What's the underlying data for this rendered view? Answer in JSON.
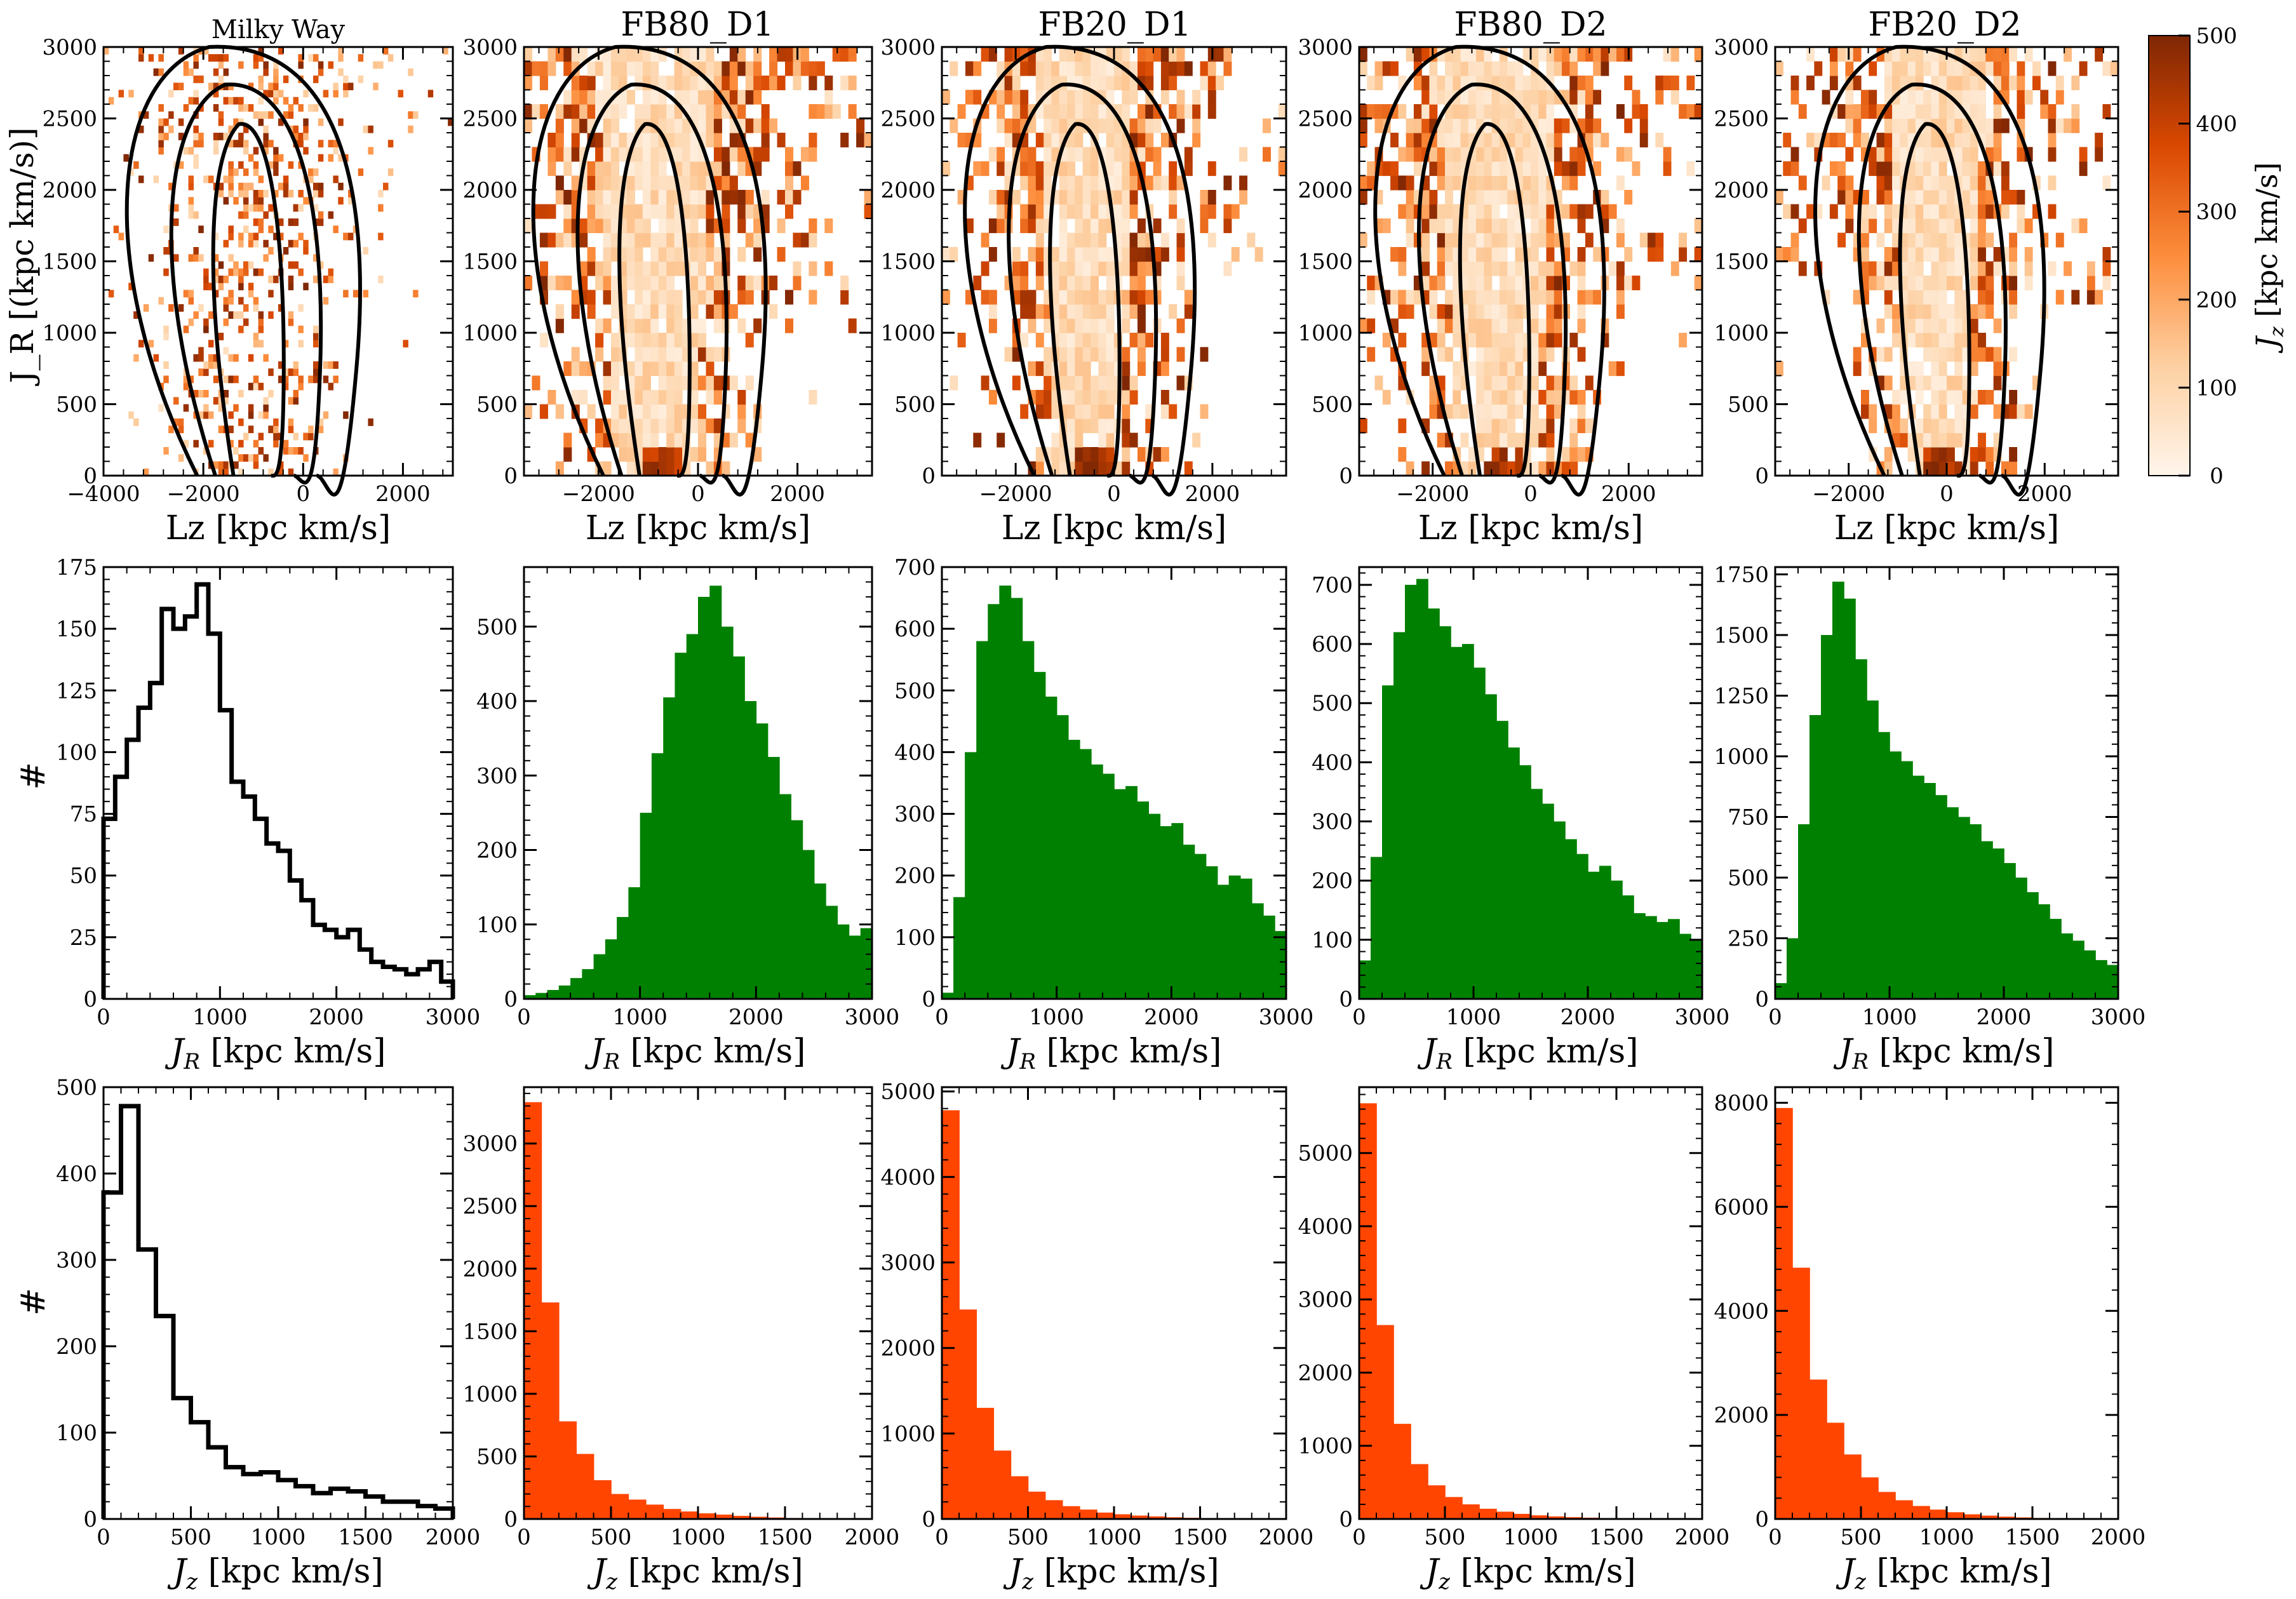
{
  "figure": {
    "column_titles": [
      "Milky Way",
      "FB80_D1",
      "FB20_D1",
      "FB80_D2",
      "FB20_D2"
    ],
    "colorbar": {
      "label": "J_z [kpc km/s]",
      "label_math": "J",
      "label_sub": "z",
      "label_rest": " [kpc km/s]",
      "min": 0,
      "max": 500,
      "ticks": [
        0,
        100,
        200,
        300,
        400,
        500
      ],
      "colors": [
        "#fff5eb",
        "#fdd0a2",
        "#fd8d3c",
        "#d94801",
        "#7f2704"
      ]
    },
    "row_labels": {
      "row1_ylabel": "J_R [(kpc km/s)]",
      "row2_ylabel": "#",
      "row3_ylabel": "#"
    },
    "colors": {
      "green_bar": "#008000",
      "orange_bar": "#ff4500",
      "contour": "#000000"
    }
  },
  "chart_data": [
    {
      "type": "heatmap",
      "panel": "Milky Way",
      "title": "Milky Way",
      "xlabel": "Lz [kpc km/s]",
      "ylabel": "J_R [(kpc km/s)]",
      "xlim": [
        -4000,
        3000
      ],
      "ylim": [
        0,
        3000
      ],
      "xticks": [
        -4000,
        -2000,
        0,
        2000
      ],
      "yticks": [
        0,
        500,
        1000,
        1500,
        2000,
        2500,
        3000
      ],
      "description": "sparse scattered 2D histogram with contours centred near Lz=0"
    },
    {
      "type": "heatmap",
      "panel": "FB80_D1",
      "title": "FB80_D1",
      "xlabel": "Lz [kpc km/s]",
      "xlim": [
        -3500,
        3500
      ],
      "ylim": [
        0,
        3000
      ],
      "xticks": [
        -2000,
        0,
        2000
      ],
      "yticks": [
        0,
        500,
        1000,
        1500,
        2000,
        2500,
        3000
      ]
    },
    {
      "type": "heatmap",
      "panel": "FB20_D1",
      "title": "FB20_D1",
      "xlabel": "Lz [kpc km/s]",
      "xlim": [
        -3500,
        3500
      ],
      "ylim": [
        0,
        3000
      ],
      "xticks": [
        -2000,
        0,
        2000
      ],
      "yticks": [
        0,
        500,
        1000,
        1500,
        2000,
        2500,
        3000
      ]
    },
    {
      "type": "heatmap",
      "panel": "FB80_D2",
      "title": "FB80_D2",
      "xlabel": "Lz [kpc km/s]",
      "xlim": [
        -3500,
        3500
      ],
      "ylim": [
        0,
        3000
      ],
      "xticks": [
        -2000,
        0,
        2000
      ],
      "yticks": [
        0,
        500,
        1000,
        1500,
        2000,
        2500,
        3000
      ]
    },
    {
      "type": "heatmap",
      "panel": "FB20_D2",
      "title": "FB20_D2",
      "xlabel": "Lz [kpc km/s]",
      "xlim": [
        -3500,
        3500
      ],
      "ylim": [
        0,
        3000
      ],
      "xticks": [
        -2000,
        0,
        2000
      ],
      "yticks": [
        0,
        500,
        1000,
        1500,
        2000,
        2500,
        3000
      ]
    },
    {
      "type": "bar",
      "style": "step",
      "panel": "Milky Way J_R",
      "xlabel": "J_R [kpc km/s]",
      "ylabel": "#",
      "xlim": [
        0,
        3000
      ],
      "ylim": [
        0,
        175
      ],
      "bin_width": 100,
      "values": [
        73,
        90,
        105,
        118,
        128,
        158,
        150,
        155,
        168,
        148,
        117,
        88,
        82,
        73,
        63,
        60,
        48,
        40,
        30,
        28,
        25,
        28,
        20,
        15,
        13,
        12,
        10,
        12,
        15,
        7
      ],
      "xticks": [
        0,
        1000,
        2000,
        3000
      ],
      "yticks": [
        0,
        25,
        50,
        75,
        100,
        125,
        150,
        175
      ]
    },
    {
      "type": "bar",
      "panel": "FB80_D1 J_R",
      "xlabel": "J_R [kpc km/s]",
      "xlim": [
        0,
        3000
      ],
      "ylim": [
        0,
        580
      ],
      "bin_width": 100,
      "values": [
        5,
        8,
        12,
        18,
        28,
        40,
        60,
        80,
        110,
        150,
        250,
        330,
        405,
        465,
        490,
        540,
        555,
        500,
        460,
        400,
        370,
        325,
        275,
        240,
        200,
        155,
        125,
        100,
        85,
        95
      ],
      "xticks": [
        0,
        1000,
        2000,
        3000
      ],
      "yticks": [
        0,
        100,
        200,
        300,
        400,
        500
      ]
    },
    {
      "type": "bar",
      "panel": "FB20_D1 J_R",
      "xlabel": "J_R [kpc km/s]",
      "xlim": [
        0,
        3000
      ],
      "ylim": [
        0,
        700
      ],
      "bin_width": 100,
      "values": [
        10,
        165,
        400,
        580,
        640,
        670,
        650,
        580,
        530,
        490,
        460,
        420,
        405,
        380,
        365,
        340,
        345,
        320,
        300,
        280,
        285,
        250,
        235,
        215,
        185,
        200,
        195,
        155,
        135,
        110
      ],
      "xticks": [
        0,
        1000,
        2000,
        3000
      ],
      "yticks": [
        0,
        100,
        200,
        300,
        400,
        500,
        600,
        700
      ]
    },
    {
      "type": "bar",
      "panel": "FB80_D2 J_R",
      "xlabel": "J_R [kpc km/s]",
      "xlim": [
        0,
        3000
      ],
      "ylim": [
        0,
        730
      ],
      "bin_width": 100,
      "values": [
        65,
        240,
        530,
        620,
        700,
        710,
        660,
        630,
        595,
        600,
        560,
        515,
        470,
        425,
        395,
        355,
        330,
        300,
        270,
        245,
        215,
        225,
        200,
        175,
        145,
        140,
        130,
        135,
        110,
        100
      ],
      "xticks": [
        0,
        1000,
        2000,
        3000
      ],
      "yticks": [
        0,
        100,
        200,
        300,
        400,
        500,
        600,
        700
      ]
    },
    {
      "type": "bar",
      "panel": "FB20_D2 J_R",
      "xlabel": "J_R [kpc km/s]",
      "xlim": [
        0,
        3000
      ],
      "ylim": [
        0,
        1780
      ],
      "bin_width": 100,
      "values": [
        65,
        250,
        720,
        1170,
        1500,
        1720,
        1650,
        1400,
        1230,
        1100,
        1020,
        980,
        920,
        890,
        840,
        790,
        750,
        720,
        650,
        620,
        560,
        500,
        440,
        390,
        330,
        270,
        240,
        200,
        160,
        140
      ],
      "xticks": [
        0,
        1000,
        2000,
        3000
      ],
      "yticks": [
        0,
        250,
        500,
        750,
        1000,
        1250,
        1500,
        1750
      ]
    },
    {
      "type": "bar",
      "style": "step",
      "panel": "Milky Way J_z",
      "xlabel": "J_z [kpc km/s]",
      "ylabel": "#",
      "xlim": [
        0,
        2000
      ],
      "ylim": [
        0,
        500
      ],
      "bin_width": 100,
      "values": [
        378,
        478,
        312,
        235,
        140,
        112,
        83,
        60,
        52,
        54,
        45,
        38,
        30,
        35,
        32,
        26,
        20,
        20,
        15,
        12
      ],
      "xticks": [
        0,
        500,
        1000,
        1500,
        2000
      ],
      "yticks": [
        0,
        100,
        200,
        300,
        400,
        500
      ]
    },
    {
      "type": "bar",
      "panel": "FB80_D1 J_z",
      "xlabel": "J_z [kpc km/s]",
      "xlim": [
        0,
        2000
      ],
      "ylim": [
        0,
        3450
      ],
      "bin_width": 100,
      "values": [
        3330,
        1730,
        780,
        520,
        310,
        200,
        155,
        115,
        80,
        60,
        45,
        35,
        25,
        18,
        12,
        8,
        6,
        4,
        3,
        2
      ],
      "xticks": [
        0,
        500,
        1000,
        1500,
        2000
      ],
      "yticks": [
        0,
        500,
        1000,
        1500,
        2000,
        2500,
        3000
      ]
    },
    {
      "type": "bar",
      "panel": "FB20_D1 J_z",
      "xlabel": "J_z [kpc km/s]",
      "xlim": [
        0,
        2000
      ],
      "ylim": [
        0,
        5050
      ],
      "bin_width": 100,
      "values": [
        4780,
        2450,
        1300,
        800,
        500,
        320,
        220,
        150,
        110,
        75,
        55,
        40,
        30,
        20,
        14,
        10,
        7,
        5,
        3,
        2
      ],
      "xticks": [
        0,
        500,
        1000,
        1500,
        2000
      ],
      "yticks": [
        0,
        1000,
        2000,
        3000,
        4000,
        5000
      ]
    },
    {
      "type": "bar",
      "panel": "FB80_D2 J_z",
      "xlabel": "J_z [kpc km/s]",
      "xlim": [
        0,
        2000
      ],
      "ylim": [
        0,
        5900
      ],
      "bin_width": 100,
      "values": [
        5680,
        2650,
        1300,
        750,
        460,
        300,
        200,
        140,
        100,
        70,
        50,
        35,
        25,
        18,
        12,
        9,
        6,
        4,
        3,
        2
      ],
      "xticks": [
        0,
        500,
        1000,
        1500,
        2000
      ],
      "yticks": [
        0,
        1000,
        2000,
        3000,
        4000,
        5000
      ]
    },
    {
      "type": "bar",
      "panel": "FB20_D2 J_z",
      "xlabel": "J_z [kpc km/s]",
      "xlim": [
        0,
        2000
      ],
      "ylim": [
        0,
        8300
      ],
      "bin_width": 100,
      "values": [
        7900,
        4830,
        2680,
        1850,
        1240,
        800,
        520,
        360,
        250,
        180,
        130,
        90,
        65,
        45,
        30,
        20,
        14,
        10,
        7,
        5
      ],
      "xticks": [
        0,
        500,
        1000,
        1500,
        2000
      ],
      "yticks": [
        0,
        2000,
        4000,
        6000,
        8000
      ]
    }
  ]
}
